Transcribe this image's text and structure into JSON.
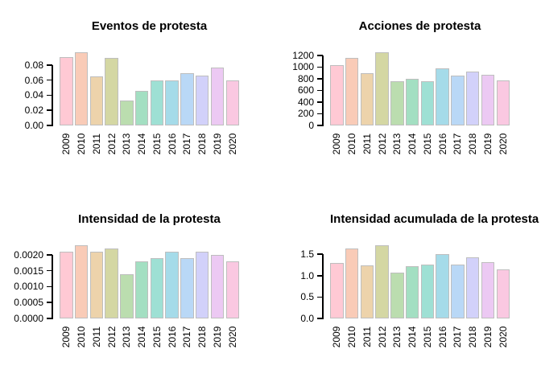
{
  "figure": {
    "background": "#ffffff",
    "axis_color": "#000000",
    "text_color": "#000000",
    "bar_border_color": "#bebebe"
  },
  "palette": [
    "#ffc9d4",
    "#f9cbb7",
    "#edd3ab",
    "#d4d7a3",
    "#bbddaf",
    "#a3dfc2",
    "#9ee0d4",
    "#a5dbe9",
    "#b9d8f6",
    "#d2d1fa",
    "#ecc9f3",
    "#fac8e1"
  ],
  "years": [
    "2009",
    "2010",
    "2011",
    "2012",
    "2013",
    "2014",
    "2015",
    "2016",
    "2017",
    "2018",
    "2019",
    "2020"
  ],
  "chart_data": [
    {
      "type": "bar",
      "title": "Eventos de protesta",
      "categories": [
        "2009",
        "2010",
        "2011",
        "2012",
        "2013",
        "2014",
        "2015",
        "2016",
        "2017",
        "2018",
        "2019",
        "2020"
      ],
      "values": [
        0.091,
        0.097,
        0.065,
        0.09,
        0.033,
        0.046,
        0.06,
        0.06,
        0.069,
        0.066,
        0.077,
        0.06
      ],
      "xlabel": "",
      "ylabel": "",
      "ylim": [
        0,
        0.097
      ],
      "yticks": [
        0,
        0.02,
        0.04,
        0.06,
        0.08
      ],
      "ytick_labels": [
        "0.00",
        "0.02",
        "0.04",
        "0.06",
        "0.08"
      ],
      "grid": false,
      "legend": null
    },
    {
      "type": "bar",
      "title": "Acciones de protesta",
      "categories": [
        "2009",
        "2010",
        "2011",
        "2012",
        "2013",
        "2014",
        "2015",
        "2016",
        "2017",
        "2018",
        "2019",
        "2020"
      ],
      "values": [
        1040,
        1160,
        900,
        1255,
        765,
        805,
        765,
        980,
        855,
        920,
        875,
        775
      ],
      "xlabel": "",
      "ylabel": "",
      "ylim": [
        0,
        1255
      ],
      "yticks": [
        0,
        200,
        400,
        600,
        800,
        1000,
        1200
      ],
      "ytick_labels": [
        "0",
        "200",
        "400",
        "600",
        "800",
        "1000",
        "1200"
      ],
      "grid": false,
      "legend": null
    },
    {
      "type": "bar",
      "title": "Intensidad de la protesta",
      "categories": [
        "2009",
        "2010",
        "2011",
        "2012",
        "2013",
        "2014",
        "2015",
        "2016",
        "2017",
        "2018",
        "2019",
        "2020"
      ],
      "values": [
        0.0021,
        0.0023,
        0.0021,
        0.0022,
        0.0014,
        0.0018,
        0.0019,
        0.0021,
        0.0019,
        0.0021,
        0.002,
        0.0018
      ],
      "xlabel": "",
      "ylabel": "",
      "ylim": [
        0,
        0.0023
      ],
      "yticks": [
        0,
        0.0005,
        0.001,
        0.0015,
        0.002
      ],
      "ytick_labels": [
        "0.0000",
        "0.0005",
        "0.0010",
        "0.0015",
        "0.0020"
      ],
      "grid": false,
      "legend": null
    },
    {
      "type": "bar",
      "title": "Intensidad acumulada de la protesta",
      "categories": [
        "2009",
        "2010",
        "2011",
        "2012",
        "2013",
        "2014",
        "2015",
        "2016",
        "2017",
        "2018",
        "2019",
        "2020"
      ],
      "values": [
        1.29,
        1.64,
        1.24,
        1.71,
        1.07,
        1.22,
        1.26,
        1.51,
        1.26,
        1.43,
        1.31,
        1.15
      ],
      "xlabel": "",
      "ylabel": "",
      "ylim": [
        0,
        1.71
      ],
      "yticks": [
        0,
        0.5,
        1.0,
        1.5
      ],
      "ytick_labels": [
        "0.0",
        "0.5",
        "1.0",
        "1.5"
      ],
      "grid": false,
      "legend": null
    }
  ]
}
